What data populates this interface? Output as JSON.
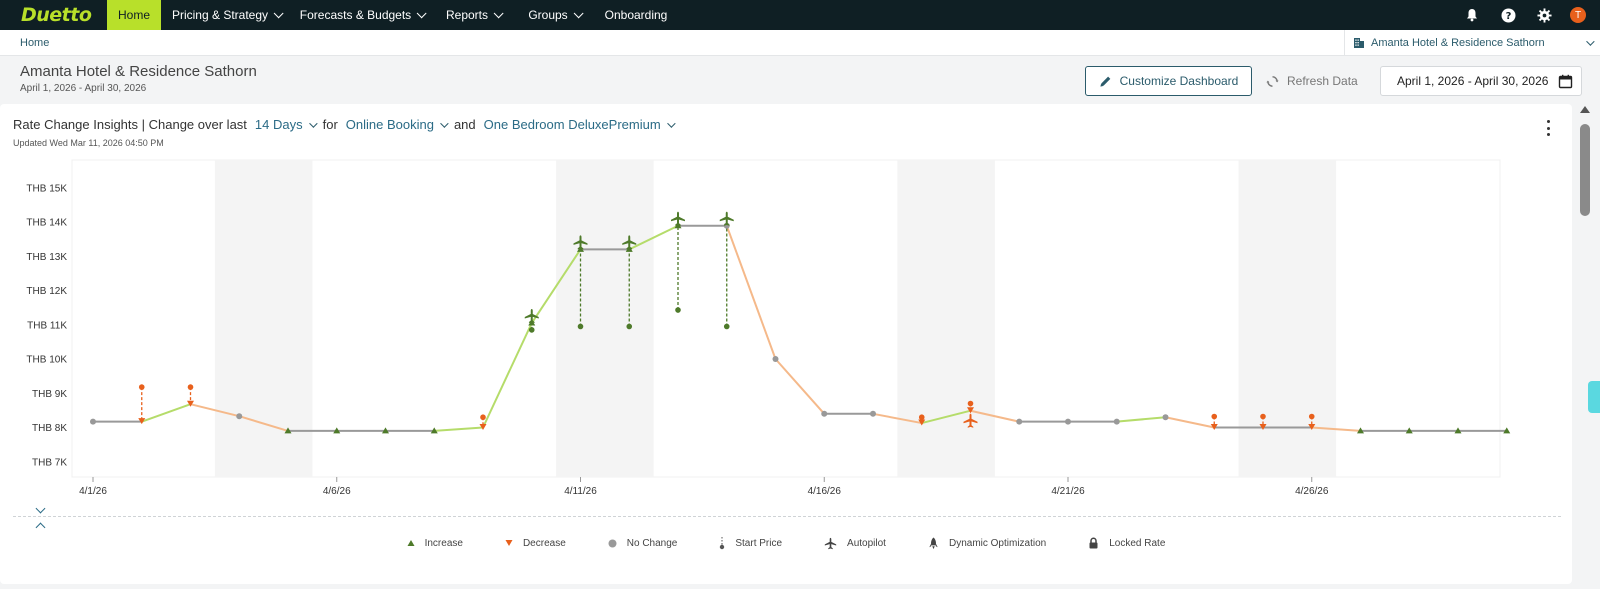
{
  "nav": {
    "logo": "Duetto",
    "items": [
      {
        "label": "Home",
        "active": true,
        "dropdown": false
      },
      {
        "label": "Pricing & Strategy",
        "active": false,
        "dropdown": true
      },
      {
        "label": "Forecasts & Budgets",
        "active": false,
        "dropdown": true
      },
      {
        "label": "Reports",
        "active": false,
        "dropdown": true
      },
      {
        "label": "Groups",
        "active": false,
        "dropdown": true
      },
      {
        "label": "Onboarding",
        "active": false,
        "dropdown": false
      }
    ],
    "avatar_initial": "T"
  },
  "breadcrumb": {
    "home": "Home"
  },
  "hotel_selector": {
    "label": "Amanta Hotel & Residence Sathorn"
  },
  "header": {
    "title": "Amanta Hotel & Residence Sathorn",
    "subtitle": "April 1, 2026 - April 30, 2026",
    "customize_label": "Customize Dashboard",
    "refresh_label": "Refresh Data",
    "date_range": "April 1, 2026 - April 30, 2026"
  },
  "card": {
    "title_prefix": "Rate Change Insights | Change over last",
    "days": "14 Days",
    "for": "for",
    "channel": "Online Booking",
    "and": "and",
    "room": "One Bedroom DeluxePremium",
    "updated": "Updated Wed Mar 11, 2026 04:50 PM"
  },
  "legend": [
    {
      "label": "Increase",
      "icon": "triangle-up"
    },
    {
      "label": "Decrease",
      "icon": "triangle-down"
    },
    {
      "label": "No Change",
      "icon": "circle"
    },
    {
      "label": "Start Price",
      "icon": "start-price"
    },
    {
      "label": "Autopilot",
      "icon": "plane"
    },
    {
      "label": "Dynamic Optimization",
      "icon": "rocket"
    },
    {
      "label": "Locked Rate",
      "icon": "lock"
    }
  ],
  "colors": {
    "increase": "#b5dc6a",
    "decrease": "#f5b98a",
    "nochange": "#999999",
    "marker_green": "#4e7a2a",
    "marker_orange": "#e8601c",
    "accent": "#b8e02a"
  },
  "chart_data": {
    "type": "line",
    "y_ticks": [
      "THB 7K",
      "THB 8K",
      "THB 9K",
      "THB 10K",
      "THB 11K",
      "THB 12K",
      "THB 13K",
      "THB 14K",
      "THB 15K"
    ],
    "ylim": [
      7000,
      15000
    ],
    "x_tick_labels": [
      "4/1/26",
      "4/6/26",
      "4/11/26",
      "4/16/26",
      "4/21/26",
      "4/26/26"
    ],
    "weekend_bands_days": [
      [
        3.5,
        5.5
      ],
      [
        10.5,
        12.5
      ],
      [
        17.5,
        19.5
      ],
      [
        24.5,
        26.5
      ]
    ],
    "points": [
      {
        "day": 1,
        "rate": 8170,
        "type": "nochange"
      },
      {
        "day": 2,
        "rate": 8170,
        "type": "decrease",
        "start": 9180
      },
      {
        "day": 3,
        "rate": 8680,
        "type": "decrease",
        "start": 9180
      },
      {
        "day": 4,
        "rate": 8330,
        "type": "nochange"
      },
      {
        "day": 5,
        "rate": 7900,
        "type": "increase"
      },
      {
        "day": 6,
        "rate": 7900,
        "type": "increase"
      },
      {
        "day": 7,
        "rate": 7900,
        "type": "increase"
      },
      {
        "day": 8,
        "rate": 7900,
        "type": "increase"
      },
      {
        "day": 9,
        "rate": 8000,
        "type": "decrease",
        "start": 8300
      },
      {
        "day": 10,
        "rate": 11050,
        "type": "increase",
        "start": 10850,
        "autopilot": true
      },
      {
        "day": 11,
        "rate": 13200,
        "type": "increase",
        "start": 10950,
        "autopilot": true
      },
      {
        "day": 12,
        "rate": 13200,
        "type": "increase",
        "start": 10950,
        "autopilot": true
      },
      {
        "day": 13,
        "rate": 13890,
        "type": "increase",
        "start": 11430,
        "autopilot": true
      },
      {
        "day": 14,
        "rate": 13890,
        "type": "nochange",
        "start": 10950,
        "autopilot": true
      },
      {
        "day": 15,
        "rate": 10000,
        "type": "nochange"
      },
      {
        "day": 16,
        "rate": 8400,
        "type": "nochange"
      },
      {
        "day": 17,
        "rate": 8400,
        "type": "nochange"
      },
      {
        "day": 18,
        "rate": 8130,
        "type": "decrease",
        "start": 8300
      },
      {
        "day": 19,
        "rate": 8490,
        "type": "decrease",
        "start": 8700,
        "autopilot": true
      },
      {
        "day": 20,
        "rate": 8170,
        "type": "nochange"
      },
      {
        "day": 21,
        "rate": 8170,
        "type": "nochange"
      },
      {
        "day": 22,
        "rate": 8170,
        "type": "nochange"
      },
      {
        "day": 23,
        "rate": 8300,
        "type": "nochange"
      },
      {
        "day": 24,
        "rate": 8000,
        "type": "decrease",
        "start": 8320
      },
      {
        "day": 25,
        "rate": 8000,
        "type": "decrease",
        "start": 8320
      },
      {
        "day": 26,
        "rate": 8000,
        "type": "decrease",
        "start": 8320
      },
      {
        "day": 27,
        "rate": 7900,
        "type": "increase"
      },
      {
        "day": 28,
        "rate": 7900,
        "type": "increase"
      },
      {
        "day": 29,
        "rate": 7900,
        "type": "increase"
      },
      {
        "day": 30,
        "rate": 7900,
        "type": "increase"
      }
    ]
  }
}
